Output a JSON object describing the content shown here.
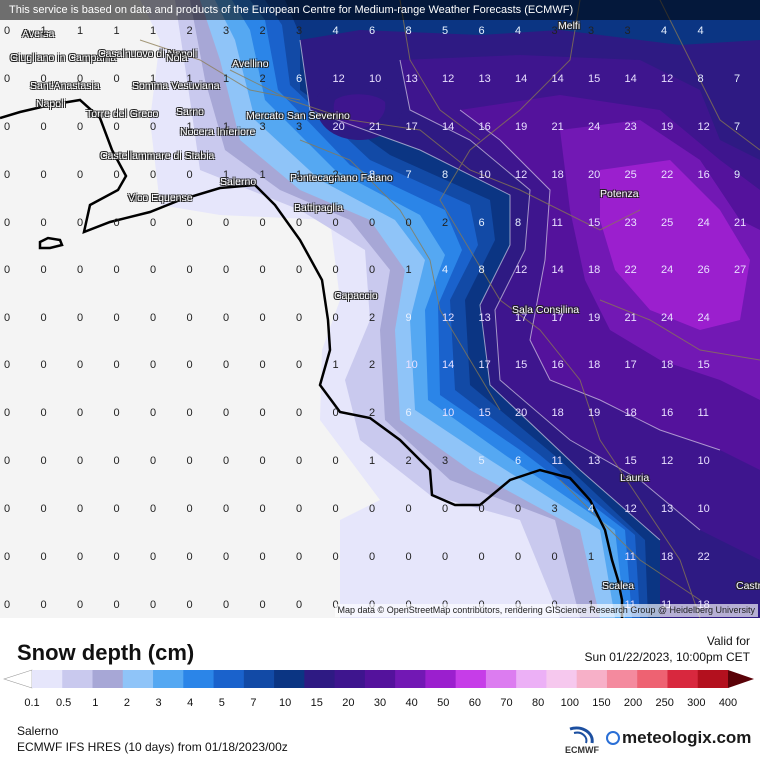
{
  "map": {
    "notice": "This service is based on data and products of the European Centre for Medium-range Weather Forecasts (ECMWF)",
    "attribution": "Map data © OpenStreetMap contributors, rendering GIScience Research Group @ Heidelberg University",
    "places": [
      "Aversa",
      "Giugliano in Campania",
      "Casalnuovo di Napoli",
      "Nola",
      "Melfi",
      "Sant'Anastasia",
      "Somma Vesuviana",
      "Avellino",
      "Napoli",
      "Torre del Greco",
      "Sarno",
      "Nocera Inferiore",
      "Mercato San Severino",
      "Castellammare di Stabia",
      "Salerno",
      "Pontecagnano Faiano",
      "Vico Equense",
      "Battipaglia",
      "Potenza",
      "Capaccio",
      "Sala Consilina",
      "Lauria",
      "Scalea",
      "Castrovillari"
    ],
    "grid_rows": [
      [
        "0",
        "1",
        "1",
        "1",
        "1",
        "2",
        "3",
        "2",
        "3",
        "4",
        "6",
        "8",
        "5",
        "6",
        "4",
        "3",
        "3",
        "3",
        "4",
        "4"
      ],
      [
        "0",
        "0",
        "0",
        "0",
        "1",
        "1",
        "1",
        "2",
        "6",
        "12",
        "10",
        "13",
        "12",
        "13",
        "14",
        "14",
        "15",
        "14",
        "12",
        "8",
        "7"
      ],
      [
        "0",
        "0",
        "0",
        "0",
        "0",
        "1",
        "1",
        "3",
        "3",
        "20",
        "21",
        "17",
        "14",
        "16",
        "19",
        "21",
        "24",
        "23",
        "19",
        "12",
        "7"
      ],
      [
        "0",
        "0",
        "0",
        "0",
        "0",
        "0",
        "1",
        "1",
        "1",
        "2",
        "8",
        "7",
        "8",
        "10",
        "12",
        "18",
        "20",
        "25",
        "22",
        "16",
        "9"
      ],
      [
        "0",
        "0",
        "0",
        "0",
        "0",
        "0",
        "0",
        "0",
        "0",
        "0",
        "0",
        "0",
        "2",
        "6",
        "8",
        "11",
        "15",
        "23",
        "25",
        "24",
        "21"
      ],
      [
        "0",
        "0",
        "0",
        "0",
        "0",
        "0",
        "0",
        "0",
        "0",
        "0",
        "0",
        "1",
        "4",
        "8",
        "12",
        "14",
        "18",
        "22",
        "24",
        "26",
        "27"
      ],
      [
        "0",
        "0",
        "0",
        "0",
        "0",
        "0",
        "0",
        "0",
        "0",
        "0",
        "2",
        "9",
        "12",
        "13",
        "17",
        "17",
        "19",
        "21",
        "24",
        "24"
      ],
      [
        "0",
        "0",
        "0",
        "0",
        "0",
        "0",
        "0",
        "0",
        "0",
        "1",
        "2",
        "10",
        "14",
        "17",
        "15",
        "16",
        "18",
        "17",
        "18",
        "15"
      ],
      [
        "0",
        "0",
        "0",
        "0",
        "0",
        "0",
        "0",
        "0",
        "0",
        "0",
        "2",
        "6",
        "10",
        "15",
        "20",
        "18",
        "19",
        "18",
        "16",
        "11"
      ],
      [
        "0",
        "0",
        "0",
        "0",
        "0",
        "0",
        "0",
        "0",
        "0",
        "0",
        "1",
        "2",
        "3",
        "5",
        "6",
        "11",
        "13",
        "15",
        "12",
        "10"
      ],
      [
        "0",
        "0",
        "0",
        "0",
        "0",
        "0",
        "0",
        "0",
        "0",
        "0",
        "0",
        "0",
        "0",
        "0",
        "0",
        "3",
        "4",
        "12",
        "13",
        "10"
      ],
      [
        "0",
        "0",
        "0",
        "0",
        "0",
        "0",
        "0",
        "0",
        "0",
        "0",
        "0",
        "0",
        "0",
        "0",
        "0",
        "0",
        "1",
        "11",
        "18",
        "22"
      ],
      [
        "0",
        "0",
        "0",
        "0",
        "0",
        "0",
        "0",
        "0",
        "0",
        "0",
        "0",
        "0",
        "0",
        "0",
        "0",
        "0",
        "1",
        "11",
        "11",
        "18"
      ]
    ]
  },
  "legend": {
    "title": "Snow depth (cm)",
    "valid_label": "Valid for",
    "valid_date": "Sun 01/22/2023, 10:00pm CET",
    "ticks": [
      "0.1",
      "0.5",
      "1",
      "2",
      "3",
      "4",
      "5",
      "7",
      "10",
      "15",
      "20",
      "30",
      "40",
      "50",
      "60",
      "70",
      "80",
      "100",
      "150",
      "200",
      "250",
      "300",
      "400"
    ],
    "colors": [
      "#e6e6fb",
      "#c9c9ee",
      "#a7a7d6",
      "#8fc4f8",
      "#55a8f2",
      "#2b85e8",
      "#1a62cc",
      "#124aa6",
      "#0b3583",
      "#2e1a83",
      "#3e158e",
      "#54129c",
      "#7218b4",
      "#9b1fce",
      "#c63de8",
      "#dc7cf0",
      "#ecb0f6",
      "#f6c8ee",
      "#f7b0c8",
      "#f48a9e",
      "#ee6272",
      "#d8283e",
      "#b3101e",
      "#8a0612",
      "#5a0208"
    ],
    "location": "Salerno",
    "model": "ECMWF IFS HRES (10 days) from 01/18/2023/00z"
  },
  "brand": {
    "ecmwf": "ECMWF",
    "meteologix": "meteologix.com"
  }
}
